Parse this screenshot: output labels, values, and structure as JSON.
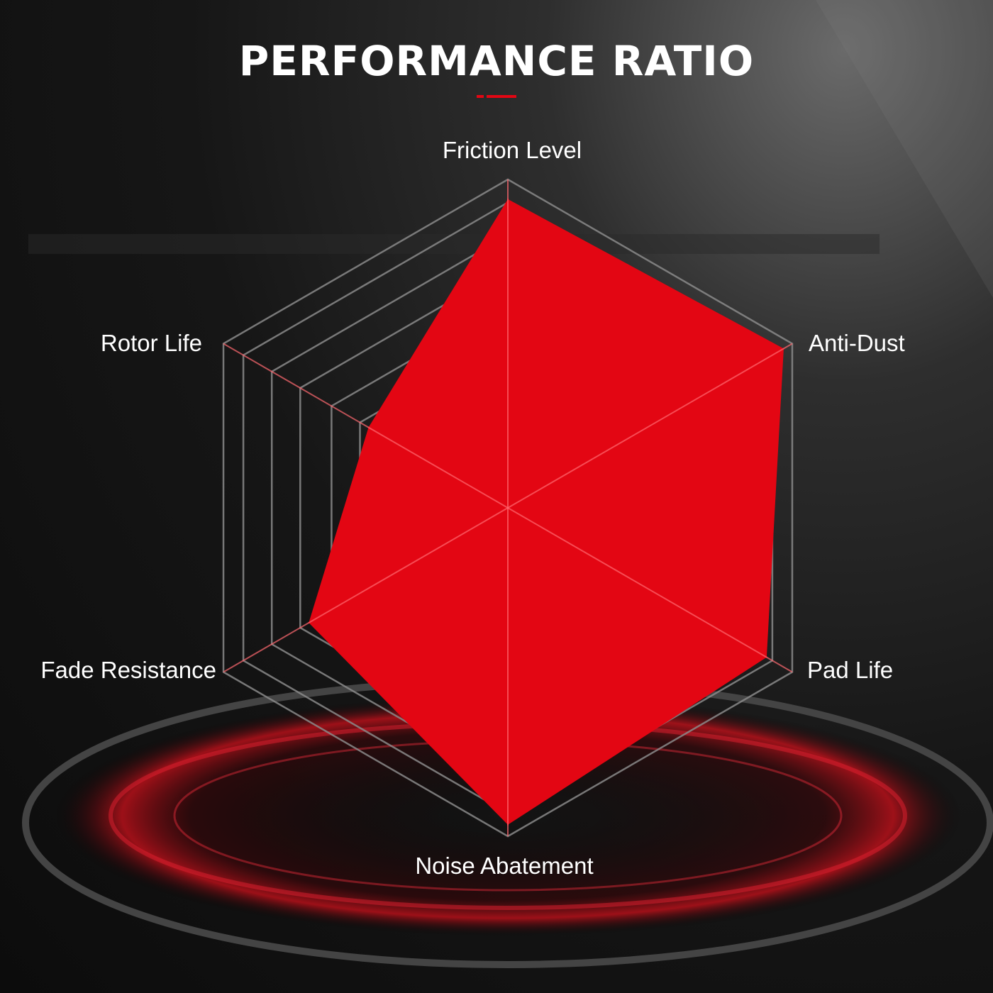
{
  "title": "PERFORMANCE RATIO",
  "colors": {
    "fill": "#e30613",
    "grid": "#8a8a8a",
    "background": "#111111",
    "accent": "#e30613"
  },
  "chart_data": {
    "type": "radar",
    "title": "PERFORMANCE RATIO",
    "categories": [
      "Friction Level",
      "Anti-Dust",
      "Pad Life",
      "Noise Abatement",
      "Fade Resistance",
      "Rotor Life"
    ],
    "values": [
      0.94,
      0.97,
      0.91,
      0.965,
      0.7,
      0.49
    ],
    "range": [
      0,
      1
    ],
    "grid_levels": [
      0.52,
      0.62,
      0.73,
      0.83,
      0.93,
      1.0
    ],
    "grid": true,
    "legend": "none"
  }
}
